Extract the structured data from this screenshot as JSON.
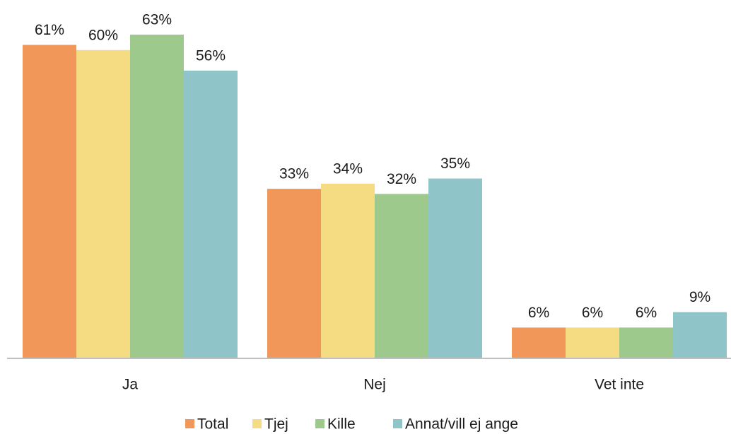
{
  "chart_data": {
    "type": "bar",
    "categories": [
      "Ja",
      "Nej",
      "Vet inte"
    ],
    "series": [
      {
        "name": "Total",
        "color": "#f2975a",
        "values": [
          61,
          33,
          6
        ],
        "value_labels": [
          "61%",
          "33%",
          "6%"
        ]
      },
      {
        "name": "Tjej",
        "color": "#f5dc82",
        "values": [
          60,
          34,
          6
        ],
        "value_labels": [
          "60%",
          "34%",
          "6%"
        ]
      },
      {
        "name": "Kille",
        "color": "#9dc98c",
        "values": [
          63,
          32,
          6
        ],
        "value_labels": [
          "63%",
          "32%",
          "6%"
        ]
      },
      {
        "name": "Annat/vill ej ange",
        "color": "#8fc4c8",
        "values": [
          56,
          35,
          9
        ],
        "value_labels": [
          "56%",
          "35%",
          "9%"
        ]
      }
    ],
    "legend": "bottom"
  }
}
